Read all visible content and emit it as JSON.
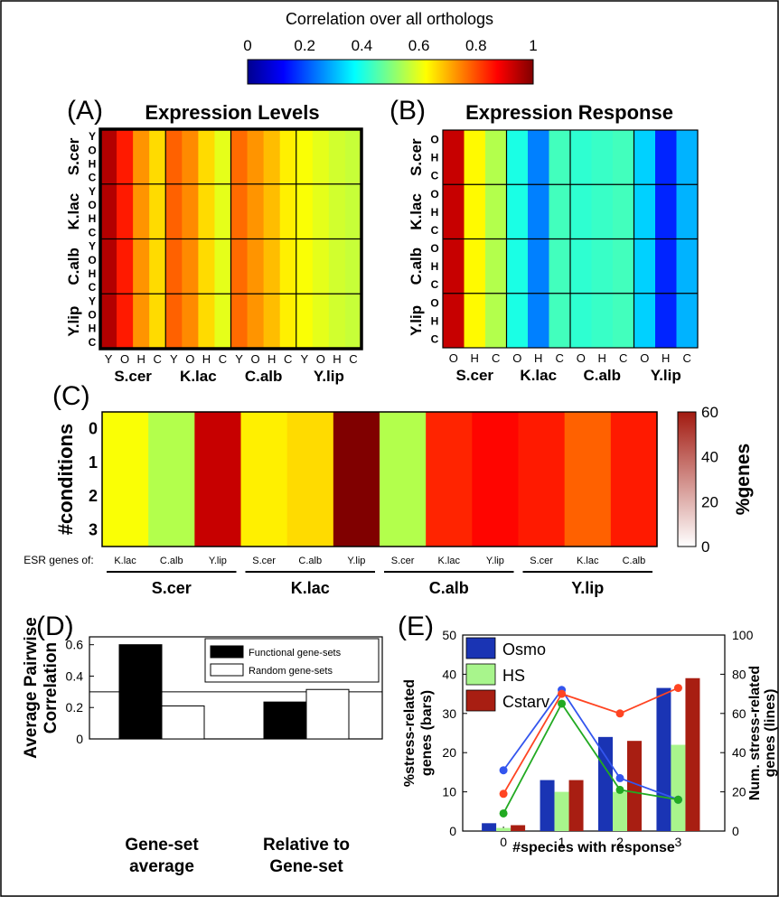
{
  "colorbar": {
    "title": "Correlation over all orthologs",
    "ticks": [
      "0",
      "0.2",
      "0.4",
      "0.6",
      "0.8",
      "1"
    ],
    "range": [
      0,
      1
    ]
  },
  "chart_data": [
    {
      "panel_label": "(A)",
      "type": "heatmap",
      "title": "Expression Levels",
      "species": [
        "S.cer",
        "K.lac",
        "C.alb",
        "Y.lip"
      ],
      "conditions": [
        "Y",
        "O",
        "H",
        "C"
      ],
      "columns": [
        {
          "species": "S.cer",
          "condition": "Y",
          "value": 0.95
        },
        {
          "species": "S.cer",
          "condition": "O",
          "value": 0.85
        },
        {
          "species": "S.cer",
          "condition": "H",
          "value": 0.73
        },
        {
          "species": "S.cer",
          "condition": "C",
          "value": 0.66
        },
        {
          "species": "K.lac",
          "condition": "Y",
          "value": 0.78
        },
        {
          "species": "K.lac",
          "condition": "O",
          "value": 0.74
        },
        {
          "species": "K.lac",
          "condition": "H",
          "value": 0.66
        },
        {
          "species": "K.lac",
          "condition": "C",
          "value": 0.6
        },
        {
          "species": "C.alb",
          "condition": "Y",
          "value": 0.77
        },
        {
          "species": "C.alb",
          "condition": "O",
          "value": 0.73
        },
        {
          "species": "C.alb",
          "condition": "H",
          "value": 0.69
        },
        {
          "species": "C.alb",
          "condition": "C",
          "value": 0.64
        },
        {
          "species": "Y.lip",
          "condition": "Y",
          "value": 0.62
        },
        {
          "species": "Y.lip",
          "condition": "O",
          "value": 0.6
        },
        {
          "species": "Y.lip",
          "condition": "H",
          "value": 0.58
        },
        {
          "species": "Y.lip",
          "condition": "C",
          "value": 0.57
        }
      ]
    },
    {
      "panel_label": "(B)",
      "type": "heatmap",
      "title": "Expression Response",
      "species": [
        "S.cer",
        "K.lac",
        "C.alb",
        "Y.lip"
      ],
      "conditions": [
        "O",
        "H",
        "C"
      ],
      "columns": [
        {
          "species": "S.cer",
          "condition": "O",
          "value": 0.93
        },
        {
          "species": "S.cer",
          "condition": "H",
          "value": 0.63
        },
        {
          "species": "S.cer",
          "condition": "C",
          "value": 0.55
        },
        {
          "species": "K.lac",
          "condition": "O",
          "value": 0.4
        },
        {
          "species": "K.lac",
          "condition": "H",
          "value": 0.25
        },
        {
          "species": "K.lac",
          "condition": "C",
          "value": 0.44
        },
        {
          "species": "C.alb",
          "condition": "O",
          "value": 0.42
        },
        {
          "species": "C.alb",
          "condition": "H",
          "value": 0.43
        },
        {
          "species": "C.alb",
          "condition": "C",
          "value": 0.44
        },
        {
          "species": "Y.lip",
          "condition": "O",
          "value": 0.33
        },
        {
          "species": "Y.lip",
          "condition": "H",
          "value": 0.16
        },
        {
          "species": "Y.lip",
          "condition": "C",
          "value": 0.3
        }
      ]
    },
    {
      "panel_label": "(C)",
      "type": "heatmap",
      "ylabel": "#conditions",
      "yticks": [
        "0",
        "1",
        "2",
        "3"
      ],
      "row_label": "ESR genes of:",
      "colorbar_label": "%genes",
      "colorbar_ticks": [
        "0",
        "20",
        "40",
        "60"
      ],
      "colorbar_range": [
        0,
        60
      ],
      "groups": [
        "S.cer",
        "K.lac",
        "C.alb",
        "Y.lip"
      ],
      "columns": [
        {
          "group": "S.cer",
          "label": "K.lac",
          "value": 0.62
        },
        {
          "group": "S.cer",
          "label": "C.alb",
          "value": 0.55
        },
        {
          "group": "S.cer",
          "label": "Y.lip",
          "value": 0.93
        },
        {
          "group": "K.lac",
          "label": "S.cer",
          "value": 0.64
        },
        {
          "group": "K.lac",
          "label": "C.alb",
          "value": 0.66
        },
        {
          "group": "K.lac",
          "label": "Y.lip",
          "value": 1.0
        },
        {
          "group": "C.alb",
          "label": "S.cer",
          "value": 0.55
        },
        {
          "group": "C.alb",
          "label": "K.lac",
          "value": 0.84
        },
        {
          "group": "C.alb",
          "label": "Y.lip",
          "value": 0.87
        },
        {
          "group": "Y.lip",
          "label": "S.cer",
          "value": 0.85
        },
        {
          "group": "Y.lip",
          "label": "K.lac",
          "value": 0.78
        },
        {
          "group": "Y.lip",
          "label": "C.alb",
          "value": 0.85
        }
      ]
    },
    {
      "panel_label": "(D)",
      "type": "bar",
      "ylabel": "Average Pairwise Correlation",
      "categories": [
        "Gene-set average",
        "Relative to Gene-set"
      ],
      "series": [
        {
          "name": "Functional gene-sets",
          "values": [
            0.6,
            0.235
          ],
          "color": "#000000"
        },
        {
          "name": "Random gene-sets",
          "values": [
            0.21,
            0.315
          ],
          "color": "#ffffff"
        }
      ],
      "reference_line": 0.3,
      "ylim": [
        0,
        0.65
      ],
      "yticks": [
        "0",
        "0.2",
        "0.4",
        "0.6"
      ],
      "legend_position": "top-right"
    },
    {
      "panel_label": "(E)",
      "type": "bar",
      "xlabel": "#species with response",
      "ylabel": "%stress-related genes (bars)",
      "y2label": "Num. stress-related genes (lines)",
      "categories": [
        "0",
        "1",
        "2",
        "3"
      ],
      "ylim": [
        0,
        50
      ],
      "y2lim": [
        0,
        100
      ],
      "yticks": [
        "0",
        "10",
        "20",
        "30",
        "40",
        "50"
      ],
      "y2ticks": [
        "0",
        "20",
        "40",
        "60",
        "80",
        "100"
      ],
      "series": [
        {
          "name": "Osmo",
          "values": [
            2,
            13,
            24,
            36.5
          ],
          "lines": [
            31,
            72,
            27,
            16
          ],
          "color": "#1a34b4",
          "line_color": "#3355ee"
        },
        {
          "name": "HS",
          "values": [
            0.8,
            10,
            10,
            22
          ],
          "lines": [
            9,
            65,
            21,
            16
          ],
          "color": "#a8f58c",
          "line_color": "#22aa22"
        },
        {
          "name": "Cstarv",
          "values": [
            1.5,
            13,
            23,
            39
          ],
          "lines": [
            19,
            70,
            60,
            73
          ],
          "color": "#a81e12",
          "line_color": "#ff4422"
        }
      ],
      "legend_position": "top-left"
    }
  ]
}
